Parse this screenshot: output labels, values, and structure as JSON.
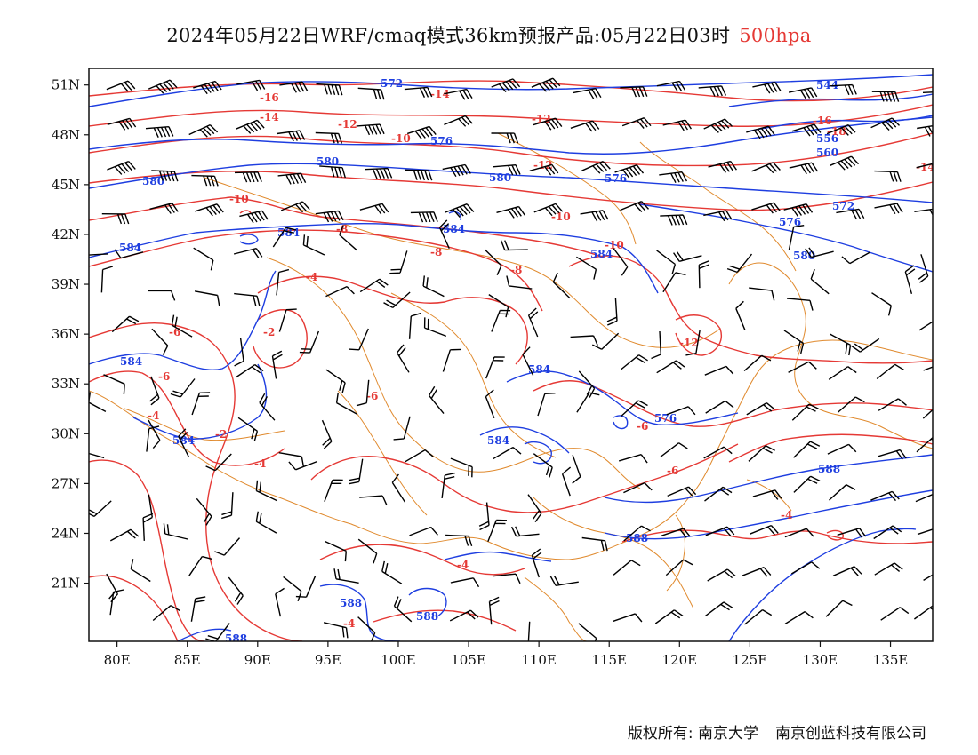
{
  "header": {
    "title": "2024年05月22日WRF/cmaq模式36km预报产品:05月22日03时",
    "level": "500hpa"
  },
  "colors": {
    "height_contour": "#1e3ee0",
    "temperature_contour": "#e53935",
    "coastline": "#e08a2e",
    "wind_barb": "#000000"
  },
  "axes": {
    "lat_ticks": [
      "51N",
      "48N",
      "45N",
      "42N",
      "39N",
      "36N",
      "33N",
      "30N",
      "27N",
      "24N",
      "21N"
    ],
    "lon_ticks": [
      "80E",
      "85E",
      "90E",
      "95E",
      "100E",
      "105E",
      "110E",
      "115E",
      "120E",
      "125E",
      "130E",
      "135E"
    ],
    "lon_range": [
      78,
      138
    ],
    "lat_range": [
      17.5,
      52
    ]
  },
  "contour_labels": {
    "height": [
      "572",
      "576",
      "580",
      "580",
      "580",
      "584",
      "584",
      "584",
      "584",
      "584",
      "584",
      "584",
      "584",
      "576",
      "576",
      "580",
      "588",
      "588",
      "588",
      "588",
      "588",
      "544",
      "556",
      "560",
      "572",
      "576"
    ],
    "temperature": [
      "-16",
      "-14",
      "-14",
      "-12",
      "-12",
      "-12",
      "-10",
      "-10",
      "-10",
      "-8",
      "-8",
      "-8",
      "-6",
      "-6",
      "-6",
      "-6",
      "-4",
      "-4",
      "-2",
      "-2",
      "-4",
      "-4",
      "-4",
      "-6",
      "-12",
      "-16",
      "-18",
      "-10",
      "-14",
      "-4"
    ]
  },
  "footer": {
    "copyright": "版权所有: 南京大学",
    "company": "南京创蓝科技有限公司"
  }
}
